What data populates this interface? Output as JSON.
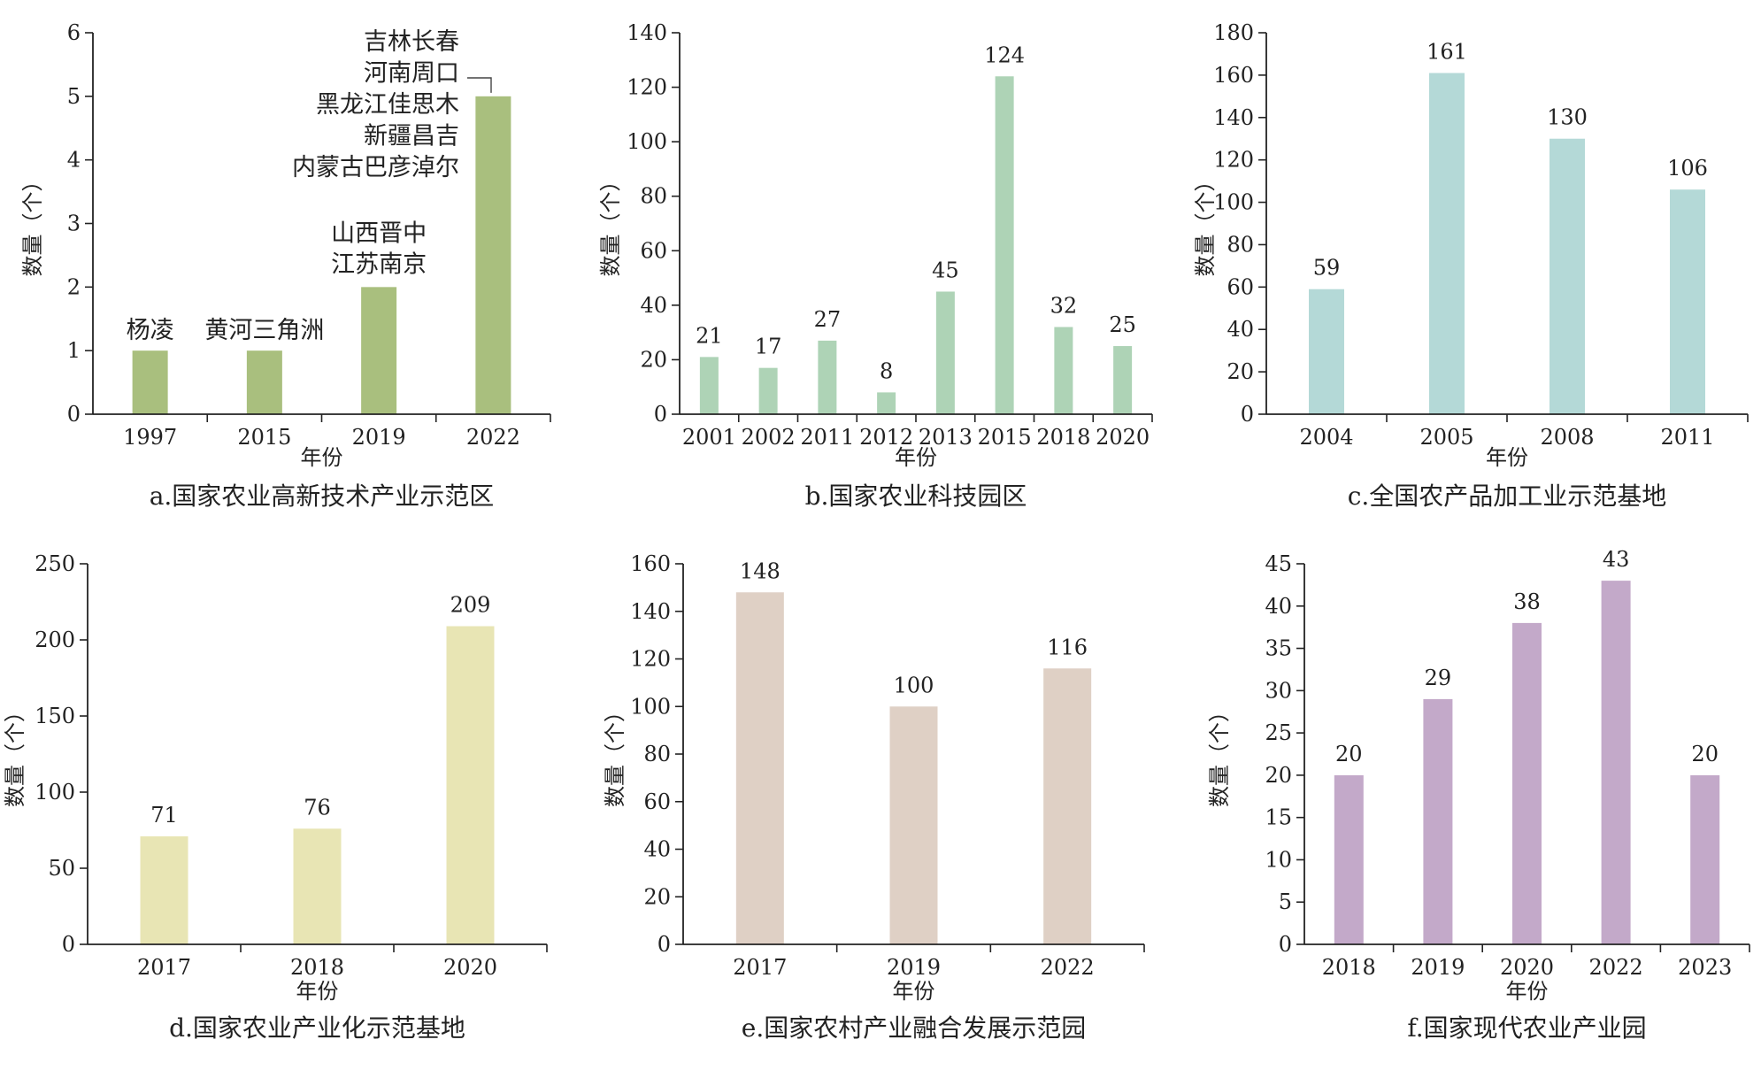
{
  "chart_data": [
    {
      "type": "bar",
      "caption": "a.国家农业高新技术产业示范区",
      "xlabel": "年份",
      "ylabel": "数量（个）",
      "categories": [
        "1997",
        "2015",
        "2019",
        "2022"
      ],
      "values": [
        1,
        1,
        2,
        5
      ],
      "ylim": [
        0,
        6
      ],
      "yticks": [
        "0",
        "1",
        "2",
        "3",
        "4",
        "5",
        "6"
      ],
      "bar_color": "#a9bf7e",
      "annotations": [
        {
          "category": "1997",
          "lines": [
            "杨凌"
          ]
        },
        {
          "category": "2015",
          "lines": [
            "黄河三角洲"
          ]
        },
        {
          "category": "2019",
          "lines": [
            "山西晋中",
            "江苏南京"
          ]
        },
        {
          "category": "2022",
          "lines": [
            "吉林长春",
            "河南周口",
            "黑龙江佳思木",
            "新疆昌吉",
            "内蒙古巴彦淖尔"
          ]
        }
      ]
    },
    {
      "type": "bar",
      "caption": "b.国家农业科技园区",
      "xlabel": "年份",
      "ylabel": "数量（个）",
      "categories": [
        "2001",
        "2002",
        "2011",
        "2012",
        "2013",
        "2015",
        "2018",
        "2020"
      ],
      "values": [
        21,
        17,
        27,
        8,
        45,
        124,
        32,
        25
      ],
      "value_labels": [
        "21",
        "17",
        "27",
        "8",
        "45",
        "124",
        "32",
        "25"
      ],
      "ylim": [
        0,
        140
      ],
      "yticks": [
        "0",
        "20",
        "40",
        "60",
        "80",
        "100",
        "120",
        "140"
      ],
      "bar_color": "#aed3b6"
    },
    {
      "type": "bar",
      "caption": "c.全国农产品加工业示范基地",
      "xlabel": "年份",
      "ylabel": "数量（个）",
      "categories": [
        "2004",
        "2005",
        "2008",
        "2011"
      ],
      "values": [
        59,
        161,
        130,
        106
      ],
      "value_labels": [
        "59",
        "161",
        "130",
        "106"
      ],
      "ylim": [
        0,
        180
      ],
      "yticks": [
        "0",
        "20",
        "40",
        "60",
        "80",
        "100",
        "120",
        "140",
        "160",
        "180"
      ],
      "bar_color": "#b4d9d7"
    },
    {
      "type": "bar",
      "caption": "d.国家农业产业化示范基地",
      "xlabel": "年份",
      "ylabel": "数量（个）",
      "categories": [
        "2017",
        "2018",
        "2020"
      ],
      "values": [
        71,
        76,
        209
      ],
      "value_labels": [
        "71",
        "76",
        "209"
      ],
      "ylim": [
        0,
        250
      ],
      "yticks": [
        "0",
        "50",
        "100",
        "150",
        "200",
        "250"
      ],
      "bar_color": "#e8e5b4"
    },
    {
      "type": "bar",
      "caption": "e.国家农村产业融合发展示范园",
      "xlabel": "年份",
      "ylabel": "数量（个）",
      "categories": [
        "2017",
        "2019",
        "2022"
      ],
      "values": [
        148,
        100,
        116
      ],
      "value_labels": [
        "148",
        "100",
        "116"
      ],
      "ylim": [
        0,
        160
      ],
      "yticks": [
        "0",
        "20",
        "40",
        "60",
        "80",
        "100",
        "120",
        "140",
        "160"
      ],
      "bar_color": "#dfd0c5"
    },
    {
      "type": "bar",
      "caption": "f.国家现代农业产业园",
      "xlabel": "年份",
      "ylabel": "数量（个）",
      "categories": [
        "2018",
        "2019",
        "2020",
        "2022",
        "2023"
      ],
      "values": [
        20,
        29,
        38,
        43,
        20
      ],
      "value_labels": [
        "20",
        "29",
        "38",
        "43",
        "20"
      ],
      "ylim": [
        0,
        45
      ],
      "yticks": [
        "0",
        "5",
        "10",
        "15",
        "20",
        "25",
        "30",
        "35",
        "40",
        "45"
      ],
      "bar_color": "#c3a9c9"
    }
  ]
}
